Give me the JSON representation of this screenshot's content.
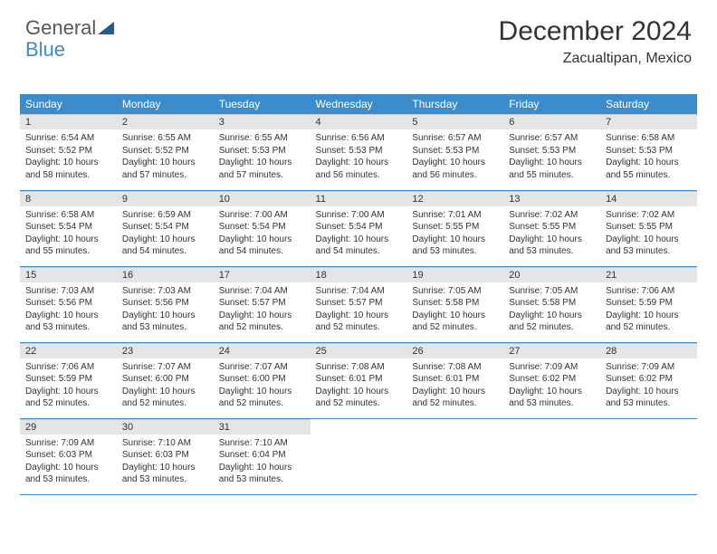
{
  "logo": {
    "part1": "General",
    "part2": "Blue"
  },
  "header": {
    "title": "December 2024",
    "location": "Zacualtipan, Mexico"
  },
  "colors": {
    "header_bg": "#3c8ccb",
    "header_text": "#ffffff",
    "daynum_bg": "#e3e5e7",
    "row_border": "#3c8ccb",
    "page_bg": "#ffffff",
    "text": "#333333",
    "logo_grey": "#595959",
    "logo_blue": "#3c8ccb"
  },
  "typography": {
    "title_fontsize": 30,
    "location_fontsize": 16,
    "dayheader_fontsize": 12,
    "daynum_fontsize": 11,
    "cell_fontsize": 10
  },
  "layout": {
    "columns": 7,
    "rows": 5,
    "first_day_column": 0
  },
  "day_names": [
    "Sunday",
    "Monday",
    "Tuesday",
    "Wednesday",
    "Thursday",
    "Friday",
    "Saturday"
  ],
  "days": [
    {
      "n": "1",
      "sunrise": "6:54 AM",
      "sunset": "5:52 PM",
      "daylight": "10 hours and 58 minutes."
    },
    {
      "n": "2",
      "sunrise": "6:55 AM",
      "sunset": "5:52 PM",
      "daylight": "10 hours and 57 minutes."
    },
    {
      "n": "3",
      "sunrise": "6:55 AM",
      "sunset": "5:53 PM",
      "daylight": "10 hours and 57 minutes."
    },
    {
      "n": "4",
      "sunrise": "6:56 AM",
      "sunset": "5:53 PM",
      "daylight": "10 hours and 56 minutes."
    },
    {
      "n": "5",
      "sunrise": "6:57 AM",
      "sunset": "5:53 PM",
      "daylight": "10 hours and 56 minutes."
    },
    {
      "n": "6",
      "sunrise": "6:57 AM",
      "sunset": "5:53 PM",
      "daylight": "10 hours and 55 minutes."
    },
    {
      "n": "7",
      "sunrise": "6:58 AM",
      "sunset": "5:53 PM",
      "daylight": "10 hours and 55 minutes."
    },
    {
      "n": "8",
      "sunrise": "6:58 AM",
      "sunset": "5:54 PM",
      "daylight": "10 hours and 55 minutes."
    },
    {
      "n": "9",
      "sunrise": "6:59 AM",
      "sunset": "5:54 PM",
      "daylight": "10 hours and 54 minutes."
    },
    {
      "n": "10",
      "sunrise": "7:00 AM",
      "sunset": "5:54 PM",
      "daylight": "10 hours and 54 minutes."
    },
    {
      "n": "11",
      "sunrise": "7:00 AM",
      "sunset": "5:54 PM",
      "daylight": "10 hours and 54 minutes."
    },
    {
      "n": "12",
      "sunrise": "7:01 AM",
      "sunset": "5:55 PM",
      "daylight": "10 hours and 53 minutes."
    },
    {
      "n": "13",
      "sunrise": "7:02 AM",
      "sunset": "5:55 PM",
      "daylight": "10 hours and 53 minutes."
    },
    {
      "n": "14",
      "sunrise": "7:02 AM",
      "sunset": "5:55 PM",
      "daylight": "10 hours and 53 minutes."
    },
    {
      "n": "15",
      "sunrise": "7:03 AM",
      "sunset": "5:56 PM",
      "daylight": "10 hours and 53 minutes."
    },
    {
      "n": "16",
      "sunrise": "7:03 AM",
      "sunset": "5:56 PM",
      "daylight": "10 hours and 53 minutes."
    },
    {
      "n": "17",
      "sunrise": "7:04 AM",
      "sunset": "5:57 PM",
      "daylight": "10 hours and 52 minutes."
    },
    {
      "n": "18",
      "sunrise": "7:04 AM",
      "sunset": "5:57 PM",
      "daylight": "10 hours and 52 minutes."
    },
    {
      "n": "19",
      "sunrise": "7:05 AM",
      "sunset": "5:58 PM",
      "daylight": "10 hours and 52 minutes."
    },
    {
      "n": "20",
      "sunrise": "7:05 AM",
      "sunset": "5:58 PM",
      "daylight": "10 hours and 52 minutes."
    },
    {
      "n": "21",
      "sunrise": "7:06 AM",
      "sunset": "5:59 PM",
      "daylight": "10 hours and 52 minutes."
    },
    {
      "n": "22",
      "sunrise": "7:06 AM",
      "sunset": "5:59 PM",
      "daylight": "10 hours and 52 minutes."
    },
    {
      "n": "23",
      "sunrise": "7:07 AM",
      "sunset": "6:00 PM",
      "daylight": "10 hours and 52 minutes."
    },
    {
      "n": "24",
      "sunrise": "7:07 AM",
      "sunset": "6:00 PM",
      "daylight": "10 hours and 52 minutes."
    },
    {
      "n": "25",
      "sunrise": "7:08 AM",
      "sunset": "6:01 PM",
      "daylight": "10 hours and 52 minutes."
    },
    {
      "n": "26",
      "sunrise": "7:08 AM",
      "sunset": "6:01 PM",
      "daylight": "10 hours and 52 minutes."
    },
    {
      "n": "27",
      "sunrise": "7:09 AM",
      "sunset": "6:02 PM",
      "daylight": "10 hours and 53 minutes."
    },
    {
      "n": "28",
      "sunrise": "7:09 AM",
      "sunset": "6:02 PM",
      "daylight": "10 hours and 53 minutes."
    },
    {
      "n": "29",
      "sunrise": "7:09 AM",
      "sunset": "6:03 PM",
      "daylight": "10 hours and 53 minutes."
    },
    {
      "n": "30",
      "sunrise": "7:10 AM",
      "sunset": "6:03 PM",
      "daylight": "10 hours and 53 minutes."
    },
    {
      "n": "31",
      "sunrise": "7:10 AM",
      "sunset": "6:04 PM",
      "daylight": "10 hours and 53 minutes."
    }
  ],
  "labels": {
    "sunrise": "Sunrise:",
    "sunset": "Sunset:",
    "daylight": "Daylight:"
  }
}
